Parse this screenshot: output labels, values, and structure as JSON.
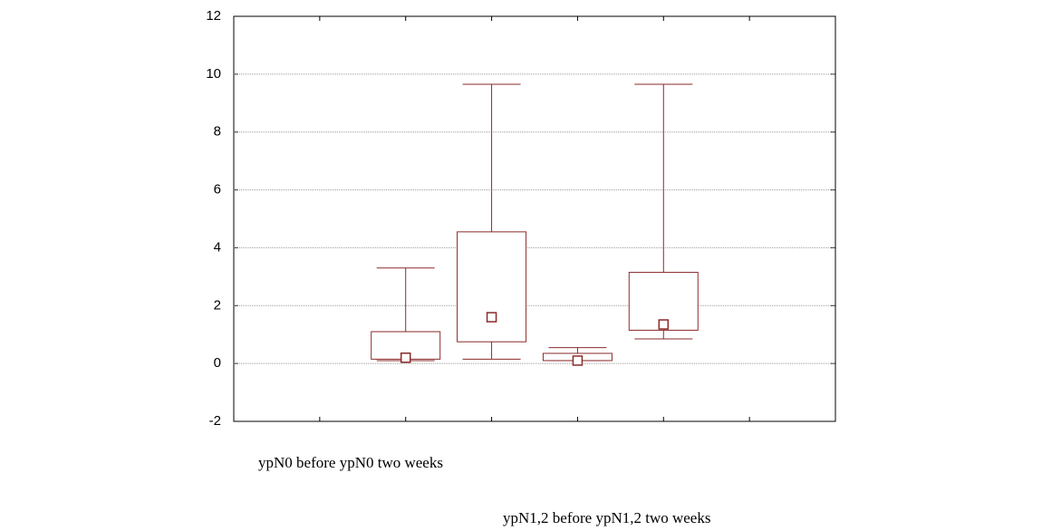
{
  "chart_data": {
    "type": "box",
    "x": [
      2,
      3,
      4,
      5
    ],
    "xlim": [
      0,
      7
    ],
    "xticks": [
      1,
      2,
      3,
      4,
      5,
      6
    ],
    "min": [
      0.1,
      0.15,
      0.1,
      0.85
    ],
    "q1": [
      0.15,
      0.75,
      0.1,
      1.15
    ],
    "median": [
      0.2,
      1.6,
      0.1,
      1.35
    ],
    "q3": [
      1.1,
      4.55,
      0.35,
      3.15
    ],
    "max": [
      3.3,
      9.65,
      0.55,
      9.65
    ],
    "color": "#8b2a2a",
    "ylim": [
      -2,
      12
    ],
    "yticks": [
      -2,
      0,
      2,
      4,
      6,
      8,
      10,
      12
    ],
    "grid": true,
    "annotations": [
      "ypN0 before  ypN0  two weeks",
      "ypN1,2 before   ypN1,2  two weeks"
    ]
  }
}
